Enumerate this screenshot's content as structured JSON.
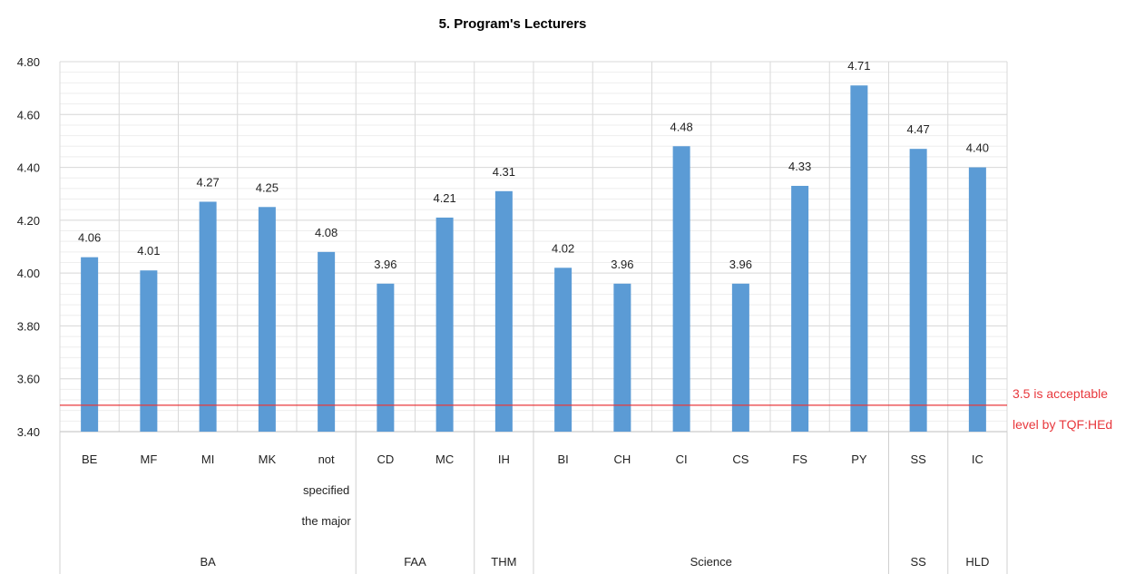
{
  "colors": {
    "bar": "#5b9bd5",
    "reference_line": "#e8383d",
    "grid": "#d9d9d9",
    "minor_grid": "#eeeeee"
  },
  "chart_data": {
    "type": "bar",
    "title": "5. Program's Lecturers",
    "xlabel": "",
    "ylabel": "",
    "ylim": [
      3.4,
      4.8
    ],
    "yticks": [
      "4.80",
      "4.60",
      "4.40",
      "4.20",
      "4.00",
      "3.80",
      "3.60",
      "3.40"
    ],
    "grid": true,
    "categories": [
      "BE",
      "MF",
      "MI",
      "MK",
      "not specified the major",
      "CD",
      "MC",
      "IH",
      "BI",
      "CH",
      "CI",
      "CS",
      "FS",
      "PY",
      "SS",
      "IC"
    ],
    "category_lines": [
      [
        "BE"
      ],
      [
        "MF"
      ],
      [
        "MI"
      ],
      [
        "MK"
      ],
      [
        "not",
        "specified",
        "the major"
      ],
      [
        "CD"
      ],
      [
        "MC"
      ],
      [
        "IH"
      ],
      [
        "BI"
      ],
      [
        "CH"
      ],
      [
        "CI"
      ],
      [
        "CS"
      ],
      [
        "FS"
      ],
      [
        "PY"
      ],
      [
        "SS"
      ],
      [
        "IC"
      ]
    ],
    "values": [
      4.06,
      4.01,
      4.27,
      4.25,
      4.08,
      3.96,
      4.21,
      4.31,
      4.02,
      3.96,
      4.48,
      3.96,
      4.33,
      4.71,
      4.47,
      4.4
    ],
    "data_labels": [
      "4.06",
      "4.01",
      "4.27",
      "4.25",
      "4.08",
      "3.96",
      "4.21",
      "4.31",
      "4.02",
      "3.96",
      "4.48",
      "3.96",
      "4.33",
      "4.71",
      "4.47",
      "4.40"
    ],
    "groups": [
      {
        "label": "BA",
        "count": 5
      },
      {
        "label": "FAA",
        "count": 2
      },
      {
        "label": "THM",
        "count": 1
      },
      {
        "label": "Science",
        "count": 6
      },
      {
        "label": "SS",
        "count": 1
      },
      {
        "label": "HLD",
        "count": 1
      }
    ],
    "reference_line": {
      "value": 3.5,
      "label_lines": [
        "3.5 is acceptable",
        "level by TQF:HEd"
      ]
    }
  }
}
